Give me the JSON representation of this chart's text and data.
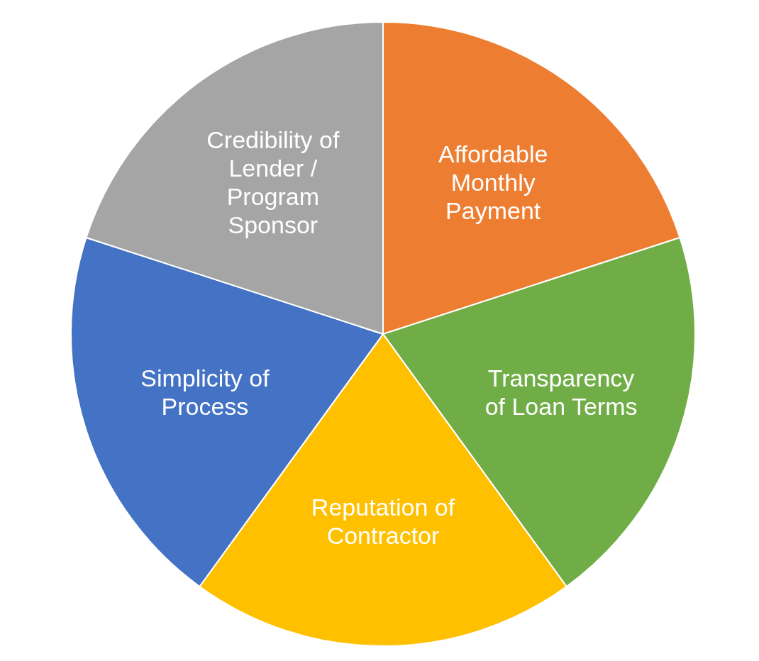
{
  "chart_data": {
    "type": "pie",
    "categories": [
      "Affordable Monthly Payment",
      "Transparency of Loan Terms",
      "Reputation of Contractor",
      "Simplicity of Process",
      "Credibility of Lender / Program Sponsor"
    ],
    "values": [
      20,
      20,
      20,
      20,
      20
    ],
    "colors": [
      "#ed7d31",
      "#70ad47",
      "#ffc000",
      "#4472c4",
      "#a5a5a5"
    ],
    "legend": false
  }
}
